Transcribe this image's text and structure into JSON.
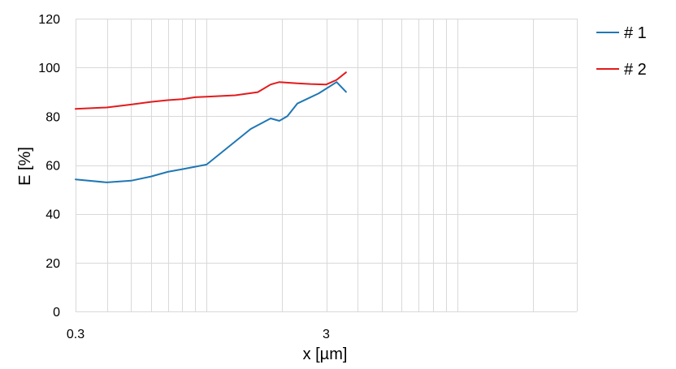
{
  "chart_data": {
    "type": "line",
    "title": "",
    "xlabel": "x [µm]",
    "ylabel": "E [%]",
    "x_scale": "log",
    "xlim": [
      0.3,
      30
    ],
    "ylim": [
      0,
      120
    ],
    "x_ticks": [
      {
        "value": 0.3,
        "label": "0.3"
      },
      {
        "value": 3,
        "label": "3"
      }
    ],
    "y_ticks": [
      {
        "value": 0,
        "label": "0"
      },
      {
        "value": 20,
        "label": "20"
      },
      {
        "value": 40,
        "label": "40"
      },
      {
        "value": 60,
        "label": "60"
      },
      {
        "value": 80,
        "label": "80"
      },
      {
        "value": 100,
        "label": "100"
      },
      {
        "value": 120,
        "label": "120"
      }
    ],
    "grid": true,
    "legend_position": "top-right",
    "series": [
      {
        "name": "# 1",
        "color": "#1f77b4",
        "points": [
          [
            0.3,
            54.1
          ],
          [
            0.4,
            52.9
          ],
          [
            0.5,
            53.6
          ],
          [
            0.6,
            55.3
          ],
          [
            0.7,
            57.2
          ],
          [
            0.8,
            58.3
          ],
          [
            1.0,
            60.2
          ],
          [
            1.5,
            74.8
          ],
          [
            1.8,
            79.1
          ],
          [
            1.95,
            78.1
          ],
          [
            2.1,
            80.0
          ],
          [
            2.3,
            85.2
          ],
          [
            2.8,
            89.4
          ],
          [
            3.3,
            94.0
          ],
          [
            3.6,
            90.0
          ]
        ]
      },
      {
        "name": "# 2",
        "color": "#e41a1c",
        "points": [
          [
            0.3,
            83.0
          ],
          [
            0.4,
            83.6
          ],
          [
            0.5,
            84.8
          ],
          [
            0.6,
            85.9
          ],
          [
            0.7,
            86.6
          ],
          [
            0.8,
            87.0
          ],
          [
            0.9,
            87.8
          ],
          [
            1.0,
            88.0
          ],
          [
            1.3,
            88.6
          ],
          [
            1.6,
            89.9
          ],
          [
            1.8,
            93.0
          ],
          [
            1.95,
            94.0
          ],
          [
            2.3,
            93.5
          ],
          [
            2.6,
            93.2
          ],
          [
            3.0,
            93.0
          ],
          [
            3.3,
            94.9
          ],
          [
            3.6,
            98.0
          ]
        ]
      }
    ]
  }
}
